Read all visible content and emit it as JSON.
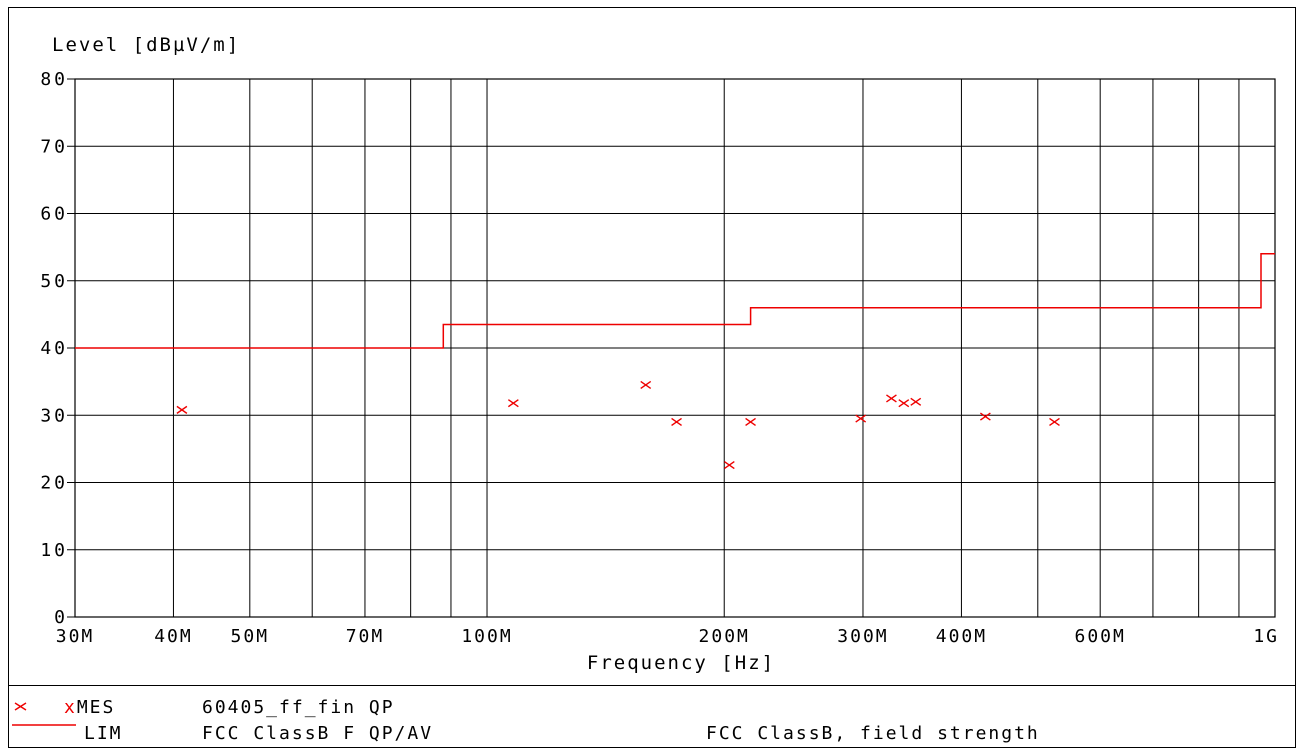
{
  "chart_data": {
    "type": "scatter",
    "title": "",
    "ylabel": "Level [dBµV/m]",
    "xlabel": "Frequency [Hz]",
    "x_scale": "log",
    "xlim": [
      30,
      1000
    ],
    "ylim": [
      0,
      80
    ],
    "grid": true,
    "y_ticks": [
      0,
      10,
      20,
      30,
      40,
      50,
      60,
      70,
      80
    ],
    "y_tick_labels": [
      "0",
      "10",
      "20",
      "30",
      "40",
      "50",
      "60",
      "70",
      "80"
    ],
    "x_gridlines": [
      40,
      50,
      60,
      70,
      80,
      90,
      100,
      200,
      300,
      400,
      500,
      600,
      700,
      800,
      900
    ],
    "x_ticks": [
      {
        "value": 30,
        "label": "30M"
      },
      {
        "value": 40,
        "label": "40M"
      },
      {
        "value": 50,
        "label": "50M"
      },
      {
        "value": 70,
        "label": "70M"
      },
      {
        "value": 100,
        "label": "100M"
      },
      {
        "value": 200,
        "label": "200M"
      },
      {
        "value": 300,
        "label": "300M"
      },
      {
        "value": 400,
        "label": "400M"
      },
      {
        "value": 600,
        "label": "600M"
      },
      {
        "value": 1000,
        "label": "1G"
      }
    ],
    "series": [
      {
        "name": "MES",
        "kind": "markers",
        "color": "#ee0000",
        "points": [
          {
            "x": 41,
            "y": 30.8
          },
          {
            "x": 108,
            "y": 31.8
          },
          {
            "x": 159,
            "y": 34.5
          },
          {
            "x": 174,
            "y": 29
          },
          {
            "x": 203,
            "y": 22.6
          },
          {
            "x": 216,
            "y": 29
          },
          {
            "x": 298,
            "y": 29.5
          },
          {
            "x": 326,
            "y": 32.5
          },
          {
            "x": 338,
            "y": 31.8
          },
          {
            "x": 350,
            "y": 32
          },
          {
            "x": 429,
            "y": 29.8
          },
          {
            "x": 525,
            "y": 29
          }
        ]
      },
      {
        "name": "LIM",
        "kind": "step-line",
        "color": "#ee0000",
        "points": [
          {
            "x": 30,
            "y": 40
          },
          {
            "x": 88,
            "y": 40
          },
          {
            "x": 88,
            "y": 43.5
          },
          {
            "x": 216,
            "y": 43.5
          },
          {
            "x": 216,
            "y": 46
          },
          {
            "x": 960,
            "y": 46
          },
          {
            "x": 960,
            "y": 54
          },
          {
            "x": 1000,
            "y": 54
          }
        ]
      }
    ]
  },
  "legend": {
    "rows": [
      {
        "symbol": "x",
        "tag": "xMES",
        "name": "60405_ff_fin QP",
        "desc": ""
      },
      {
        "symbol": "line",
        "tag": "LIM",
        "name": "FCC ClassB F QP/AV",
        "desc": "FCC ClassB, field strength"
      }
    ]
  },
  "colors": {
    "series": "#ee0000",
    "axis": "#000000",
    "background": "#ffffff"
  }
}
